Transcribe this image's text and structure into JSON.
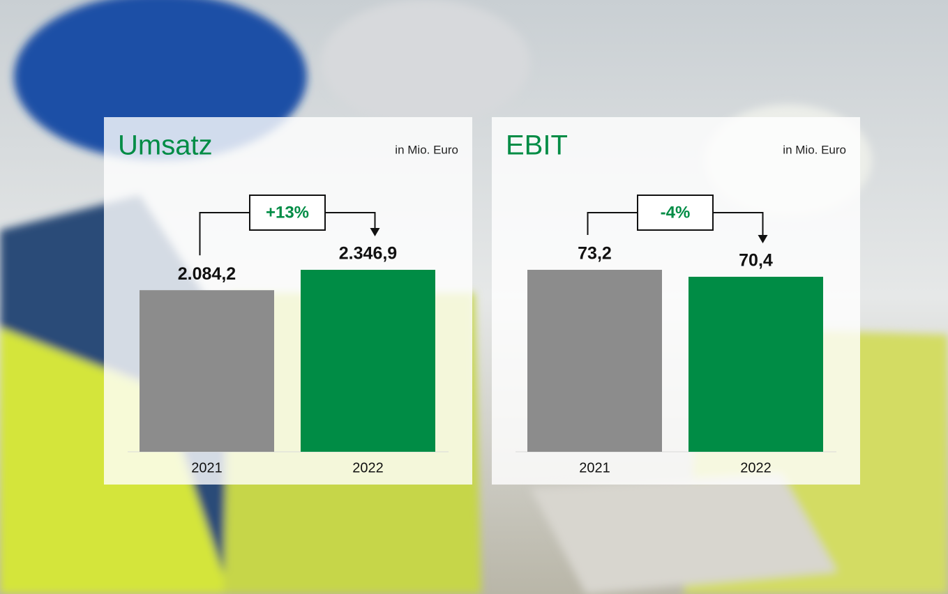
{
  "chart_data": [
    {
      "type": "bar",
      "title": "Umsatz",
      "subtitle": "in Mio. Euro",
      "categories": [
        "2021",
        "2022"
      ],
      "values": [
        2084.2,
        2346.9
      ],
      "value_labels": [
        "2.084,2",
        "2.346,9"
      ],
      "colors": [
        "#8c8c8c",
        "#008c45"
      ],
      "annotation": "+13%"
    },
    {
      "type": "bar",
      "title": "EBIT",
      "subtitle": "in Mio. Euro",
      "categories": [
        "2021",
        "2022"
      ],
      "values": [
        73.2,
        70.4
      ],
      "value_labels": [
        "73,2",
        "70,4"
      ],
      "colors": [
        "#8c8c8c",
        "#008c45"
      ],
      "annotation": "-4%"
    }
  ]
}
